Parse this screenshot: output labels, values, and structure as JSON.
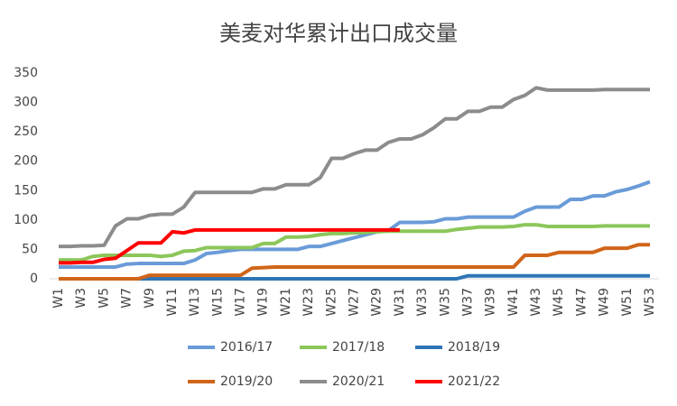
{
  "chart_data": {
    "type": "line",
    "title": "美麦对华累计出口成交量",
    "categories": [
      "W1",
      null,
      "W3",
      null,
      "W5",
      null,
      "W7",
      null,
      "W9",
      null,
      "W11",
      null,
      "W13",
      null,
      "W15",
      null,
      "W17",
      null,
      "W19",
      null,
      "W21",
      null,
      "W23",
      null,
      "W25",
      null,
      "W27",
      null,
      "W29",
      null,
      "W31",
      null,
      "W33",
      null,
      "W35",
      null,
      "W37",
      null,
      "W39",
      null,
      "W41",
      null,
      "W43",
      null,
      "W45",
      null,
      "W47",
      null,
      "W49",
      null,
      "W51",
      null,
      "W53"
    ],
    "series": [
      {
        "name": "2016/17",
        "color": "#6a9bd8",
        "values": [
          20,
          20,
          20,
          20,
          20,
          20,
          25,
          26,
          26,
          26,
          26,
          26,
          32,
          43,
          45,
          48,
          50,
          50,
          50,
          50,
          50,
          50,
          55,
          55,
          60,
          65,
          70,
          75,
          80,
          82,
          96,
          96,
          96,
          97,
          102,
          102,
          105,
          105,
          105,
          105,
          105,
          115,
          122,
          122,
          122,
          135,
          135,
          141,
          141,
          148,
          152,
          158,
          165
        ]
      },
      {
        "name": "2017/18",
        "color": "#8cc65a",
        "values": [
          32,
          32,
          32,
          38,
          40,
          40,
          40,
          40,
          40,
          38,
          40,
          47,
          48,
          53,
          53,
          53,
          53,
          53,
          60,
          60,
          71,
          71,
          72,
          75,
          77,
          77,
          78,
          79,
          80,
          81,
          81,
          81,
          81,
          81,
          81,
          84,
          86,
          88,
          88,
          88,
          89,
          92,
          92,
          89,
          89,
          89,
          89,
          89,
          90,
          90,
          90,
          90,
          90
        ]
      },
      {
        "name": "2018/19",
        "color": "#2e75b6",
        "values": [
          0,
          0,
          0,
          0,
          0,
          0,
          0,
          0,
          0,
          0,
          0,
          0,
          0,
          0,
          0,
          0,
          0,
          0,
          0,
          0,
          0,
          0,
          0,
          0,
          0,
          0,
          0,
          0,
          0,
          0,
          0,
          0,
          0,
          0,
          0,
          0,
          5,
          5,
          5,
          5,
          5,
          5,
          5,
          5,
          5,
          5,
          5,
          5,
          5,
          5,
          5,
          5,
          5
        ]
      },
      {
        "name": "2019/20",
        "color": "#d0651a",
        "values": [
          0,
          0,
          0,
          0,
          0,
          0,
          0,
          0,
          6,
          6,
          6,
          6,
          6,
          6,
          6,
          6,
          6,
          18,
          19,
          20,
          20,
          20,
          20,
          20,
          20,
          20,
          20,
          20,
          20,
          20,
          20,
          20,
          20,
          20,
          20,
          20,
          20,
          20,
          20,
          20,
          20,
          40,
          40,
          40,
          45,
          45,
          45,
          45,
          52,
          52,
          52,
          58,
          58
        ]
      },
      {
        "name": "2020/21",
        "color": "#8c8c8c",
        "values": [
          55,
          55,
          56,
          56,
          57,
          90,
          102,
          102,
          108,
          110,
          110,
          122,
          147,
          147,
          147,
          147,
          147,
          147,
          153,
          153,
          160,
          160,
          160,
          172,
          205,
          205,
          213,
          219,
          219,
          232,
          238,
          238,
          245,
          257,
          272,
          272,
          285,
          285,
          292,
          292,
          305,
          312,
          325,
          321,
          321,
          321,
          321,
          321,
          322,
          322,
          322,
          322,
          322
        ]
      },
      {
        "name": "2021/22",
        "color": "#ff0000",
        "values": [
          27,
          27,
          28,
          28,
          33,
          35,
          48,
          61,
          61,
          61,
          80,
          78,
          83,
          83,
          83,
          83,
          83,
          83,
          83,
          83,
          83,
          83,
          83,
          83,
          83,
          83,
          83,
          83,
          83,
          83,
          83,
          null,
          null,
          null,
          null,
          null,
          null,
          null,
          null,
          null,
          null,
          null,
          null,
          null,
          null,
          null,
          null,
          null,
          null,
          null,
          null,
          null,
          null
        ]
      }
    ],
    "ylim": [
      0,
      350
    ],
    "yticks": [
      0,
      50,
      100,
      150,
      200,
      250,
      300,
      350
    ],
    "grid": false,
    "legend": "bottom"
  }
}
